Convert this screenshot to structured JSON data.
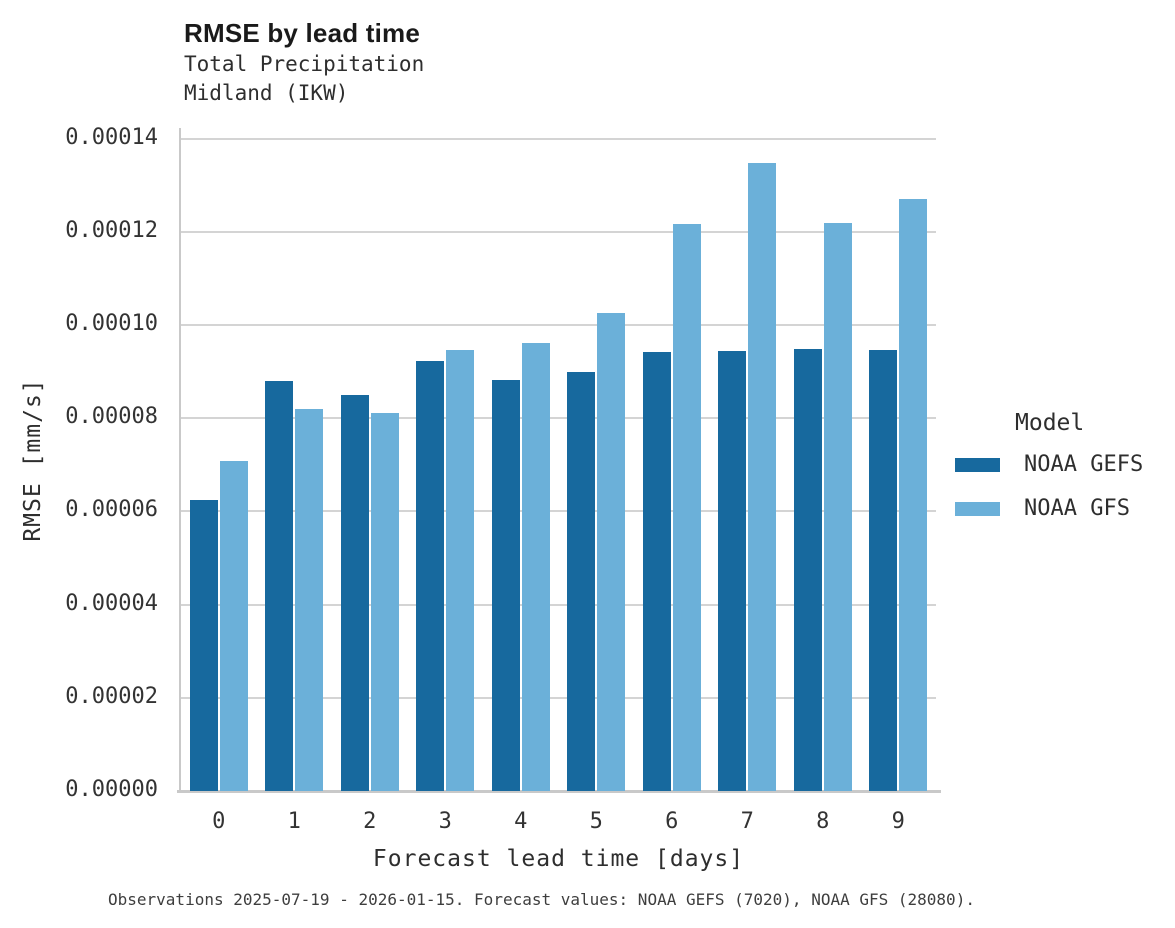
{
  "title": "RMSE by lead time",
  "subtitle_line1": "Total Precipitation",
  "subtitle_line2": "Midland (IKW)",
  "footer": "Observations 2025-07-19 - 2026-01-15. Forecast values: NOAA GEFS (7020), NOAA GFS (28080).",
  "legend": {
    "title": "Model",
    "entries": [
      {
        "label": "NOAA GEFS",
        "color": "#17699e"
      },
      {
        "label": "NOAA GFS",
        "color": "#6bb0d9"
      }
    ]
  },
  "chart_data": {
    "type": "bar",
    "title": "RMSE by lead time",
    "subtitle": [
      "Total Precipitation",
      "Midland (IKW)"
    ],
    "xlabel": "Forecast lead time [days]",
    "ylabel": "RMSE [mm/s]",
    "categories": [
      "0",
      "1",
      "2",
      "3",
      "4",
      "5",
      "6",
      "7",
      "8",
      "9"
    ],
    "series": [
      {
        "name": "NOAA GEFS",
        "color": "#17699e",
        "values": [
          6.25e-05,
          8.79e-05,
          8.49e-05,
          9.23e-05,
          8.82e-05,
          9e-05,
          9.42e-05,
          9.45e-05,
          9.49e-05,
          9.47e-05
        ]
      },
      {
        "name": "NOAA GFS",
        "color": "#6bb0d9",
        "values": [
          7.08e-05,
          8.2e-05,
          8.12e-05,
          9.47e-05,
          9.62e-05,
          0.0001025,
          0.0001217,
          0.0001347,
          0.0001219,
          0.0001271
        ]
      }
    ],
    "yticks": [
      {
        "value": 0.0,
        "label": "0.00000"
      },
      {
        "value": 2e-05,
        "label": "0.00002"
      },
      {
        "value": 4e-05,
        "label": "0.00004"
      },
      {
        "value": 6e-05,
        "label": "0.00006"
      },
      {
        "value": 8e-05,
        "label": "0.00008"
      },
      {
        "value": 0.0001,
        "label": "0.00010"
      },
      {
        "value": 0.00012,
        "label": "0.00012"
      },
      {
        "value": 0.00014,
        "label": "0.00014"
      }
    ],
    "ylim": [
      0,
      0.0001418
    ],
    "grid": true,
    "legend_title": "Model",
    "legend_position": "right"
  }
}
